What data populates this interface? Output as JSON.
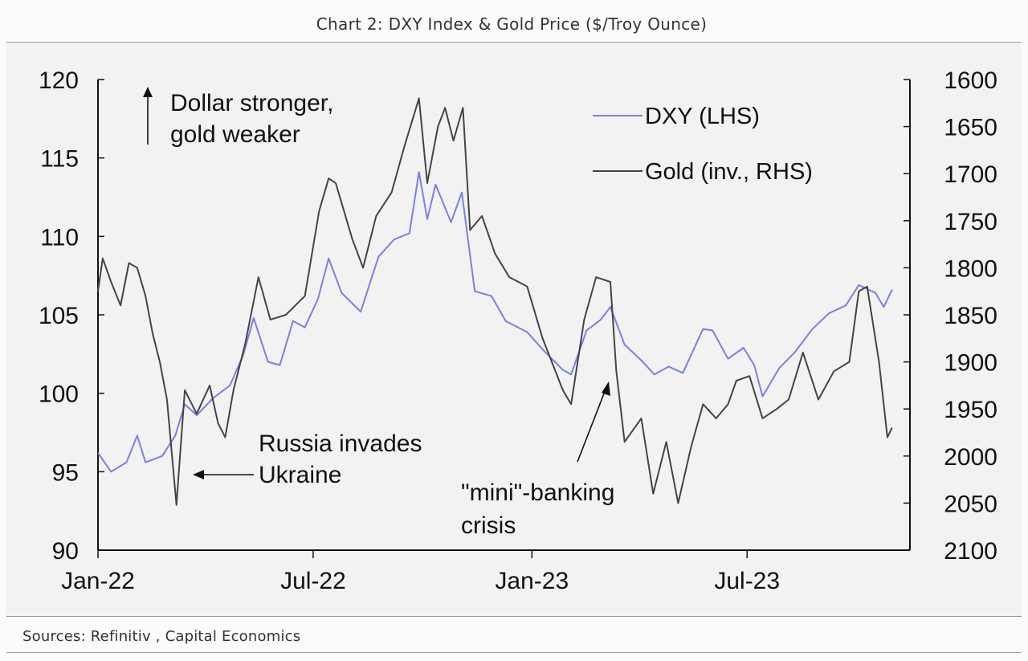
{
  "header": {
    "title": "Chart 2: DXY Index & Gold Price ($/Troy Ounce)"
  },
  "footer": {
    "source": "Sources: Refinitiv , Capital Economics"
  },
  "colors": {
    "dxy": "#7b7fe0",
    "gold": "#444444",
    "axis": "#111111",
    "background": "#f2f2f2"
  },
  "chart_data": {
    "type": "line",
    "title": "Chart 2: DXY Index & Gold Price ($/Troy Ounce)",
    "x_ticks": [
      "Jan-22",
      "Jul-22",
      "Jan-23",
      "Jul-23"
    ],
    "y_left": {
      "lim": [
        90,
        120
      ],
      "ticks": [
        120,
        115,
        110,
        105,
        100,
        95,
        90
      ]
    },
    "y_right": {
      "lim": [
        1600,
        2100
      ],
      "inverted": true,
      "ticks": [
        1600,
        1650,
        1700,
        1750,
        1800,
        1850,
        1900,
        1950,
        2000,
        2050,
        2100
      ]
    },
    "legend": {
      "placement": "top-right",
      "dxy_label": "DXY (LHS)",
      "gold_label": "Gold (inv., RHS)"
    },
    "annotations": {
      "arrow_note_1": "Dollar stronger,",
      "arrow_note_2": "gold weaker",
      "russia_1": "Russia invades",
      "russia_2": "Ukraine",
      "banking_1": "\"mini\"-banking",
      "banking_2": "crisis"
    },
    "series": [
      {
        "name": "DXY (LHS)",
        "axis": "left",
        "points": [
          [
            "2022-01-01",
            96.2
          ],
          [
            "2022-01-12",
            95.0
          ],
          [
            "2022-01-25",
            95.6
          ],
          [
            "2022-02-03",
            97.3
          ],
          [
            "2022-02-10",
            95.6
          ],
          [
            "2022-02-24",
            96.0
          ],
          [
            "2022-03-07",
            97.3
          ],
          [
            "2022-03-15",
            99.3
          ],
          [
            "2022-03-25",
            98.6
          ],
          [
            "2022-04-08",
            99.7
          ],
          [
            "2022-04-22",
            100.5
          ],
          [
            "2022-05-03",
            102.4
          ],
          [
            "2022-05-12",
            104.8
          ],
          [
            "2022-05-24",
            102.0
          ],
          [
            "2022-06-03",
            101.8
          ],
          [
            "2022-06-14",
            104.6
          ],
          [
            "2022-06-24",
            104.2
          ],
          [
            "2022-07-05",
            106.0
          ],
          [
            "2022-07-14",
            108.6
          ],
          [
            "2022-07-25",
            106.4
          ],
          [
            "2022-08-10",
            105.2
          ],
          [
            "2022-08-25",
            108.7
          ],
          [
            "2022-09-07",
            109.8
          ],
          [
            "2022-09-20",
            110.2
          ],
          [
            "2022-09-28",
            114.1
          ],
          [
            "2022-10-05",
            111.1
          ],
          [
            "2022-10-12",
            113.3
          ],
          [
            "2022-10-25",
            110.9
          ],
          [
            "2022-11-03",
            112.8
          ],
          [
            "2022-11-14",
            106.5
          ],
          [
            "2022-11-28",
            106.2
          ],
          [
            "2022-12-10",
            104.6
          ],
          [
            "2022-12-28",
            103.9
          ],
          [
            "2023-01-10",
            102.8
          ],
          [
            "2023-01-27",
            101.5
          ],
          [
            "2023-02-03",
            101.2
          ],
          [
            "2023-02-16",
            104.0
          ],
          [
            "2023-02-28",
            104.7
          ],
          [
            "2023-03-08",
            105.5
          ],
          [
            "2023-03-20",
            103.1
          ],
          [
            "2023-04-03",
            102.1
          ],
          [
            "2023-04-14",
            101.2
          ],
          [
            "2023-04-26",
            101.7
          ],
          [
            "2023-05-08",
            101.3
          ],
          [
            "2023-05-25",
            104.1
          ],
          [
            "2023-06-02",
            104.0
          ],
          [
            "2023-06-15",
            102.2
          ],
          [
            "2023-06-28",
            102.9
          ],
          [
            "2023-07-07",
            101.8
          ],
          [
            "2023-07-14",
            99.8
          ],
          [
            "2023-07-28",
            101.6
          ],
          [
            "2023-08-10",
            102.6
          ],
          [
            "2023-08-25",
            104.1
          ],
          [
            "2023-09-08",
            105.1
          ],
          [
            "2023-09-22",
            105.6
          ],
          [
            "2023-10-03",
            106.9
          ],
          [
            "2023-10-17",
            106.4
          ],
          [
            "2023-10-24",
            105.5
          ],
          [
            "2023-10-31",
            106.6
          ]
        ]
      },
      {
        "name": "Gold (inv., RHS)",
        "axis": "right",
        "points": [
          [
            "2022-01-01",
            1825
          ],
          [
            "2022-01-05",
            1790
          ],
          [
            "2022-01-12",
            1815
          ],
          [
            "2022-01-20",
            1840
          ],
          [
            "2022-01-27",
            1795
          ],
          [
            "2022-02-03",
            1800
          ],
          [
            "2022-02-10",
            1830
          ],
          [
            "2022-02-16",
            1870
          ],
          [
            "2022-02-22",
            1900
          ],
          [
            "2022-02-28",
            1940
          ],
          [
            "2022-03-08",
            2052
          ],
          [
            "2022-03-15",
            1930
          ],
          [
            "2022-03-25",
            1955
          ],
          [
            "2022-04-05",
            1925
          ],
          [
            "2022-04-12",
            1965
          ],
          [
            "2022-04-18",
            1980
          ],
          [
            "2022-04-25",
            1930
          ],
          [
            "2022-05-05",
            1880
          ],
          [
            "2022-05-16",
            1810
          ],
          [
            "2022-05-26",
            1855
          ],
          [
            "2022-06-08",
            1850
          ],
          [
            "2022-06-24",
            1830
          ],
          [
            "2022-07-06",
            1740
          ],
          [
            "2022-07-14",
            1705
          ],
          [
            "2022-07-20",
            1710
          ],
          [
            "2022-08-03",
            1770
          ],
          [
            "2022-08-12",
            1800
          ],
          [
            "2022-08-23",
            1745
          ],
          [
            "2022-09-05",
            1720
          ],
          [
            "2022-09-16",
            1670
          ],
          [
            "2022-09-28",
            1620
          ],
          [
            "2022-10-05",
            1710
          ],
          [
            "2022-10-14",
            1650
          ],
          [
            "2022-10-20",
            1630
          ],
          [
            "2022-10-27",
            1665
          ],
          [
            "2022-11-04",
            1630
          ],
          [
            "2022-11-10",
            1760
          ],
          [
            "2022-11-20",
            1745
          ],
          [
            "2022-12-01",
            1785
          ],
          [
            "2022-12-13",
            1810
          ],
          [
            "2022-12-28",
            1820
          ],
          [
            "2023-01-10",
            1875
          ],
          [
            "2023-01-27",
            1930
          ],
          [
            "2023-02-03",
            1945
          ],
          [
            "2023-02-14",
            1855
          ],
          [
            "2023-02-24",
            1810
          ],
          [
            "2023-03-08",
            1815
          ],
          [
            "2023-03-13",
            1910
          ],
          [
            "2023-03-20",
            1985
          ],
          [
            "2023-04-03",
            1960
          ],
          [
            "2023-04-13",
            2040
          ],
          [
            "2023-04-24",
            1985
          ],
          [
            "2023-05-04",
            2050
          ],
          [
            "2023-05-15",
            1990
          ],
          [
            "2023-05-25",
            1945
          ],
          [
            "2023-06-05",
            1960
          ],
          [
            "2023-06-15",
            1945
          ],
          [
            "2023-06-22",
            1920
          ],
          [
            "2023-07-03",
            1915
          ],
          [
            "2023-07-14",
            1960
          ],
          [
            "2023-07-26",
            1950
          ],
          [
            "2023-08-05",
            1940
          ],
          [
            "2023-08-17",
            1890
          ],
          [
            "2023-08-30",
            1940
          ],
          [
            "2023-09-12",
            1910
          ],
          [
            "2023-09-25",
            1900
          ],
          [
            "2023-10-03",
            1825
          ],
          [
            "2023-10-10",
            1820
          ],
          [
            "2023-10-20",
            1900
          ],
          [
            "2023-10-27",
            1980
          ],
          [
            "2023-10-31",
            1970
          ]
        ]
      }
    ]
  }
}
